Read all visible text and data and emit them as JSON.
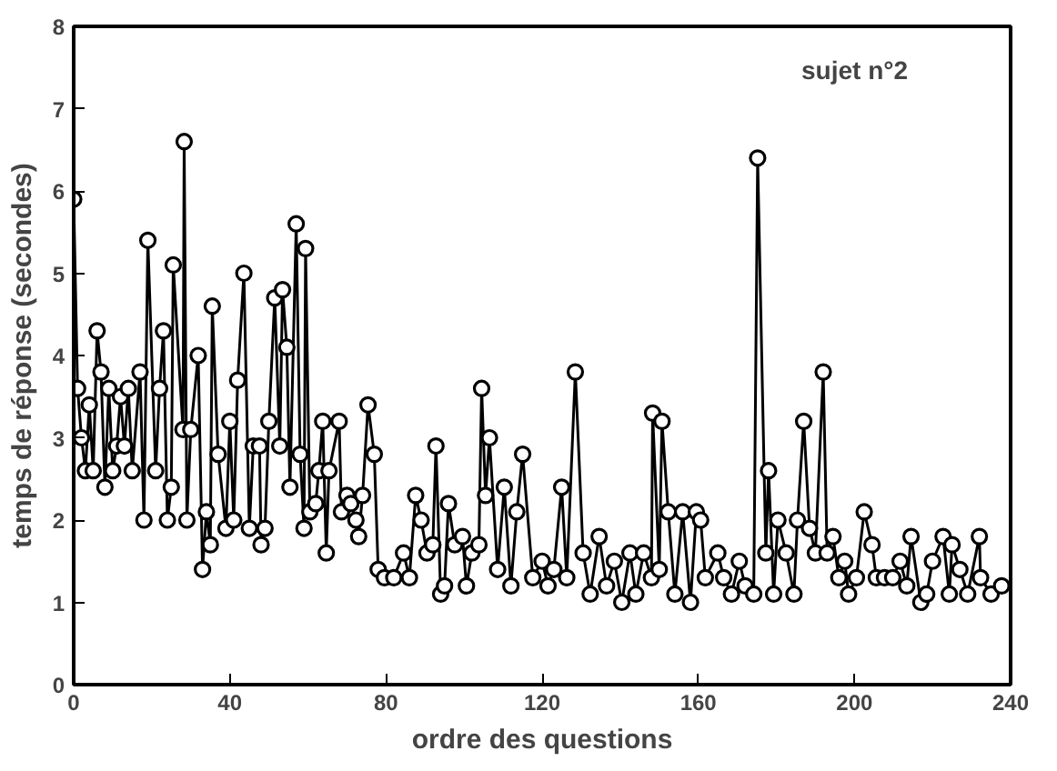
{
  "chart_data": {
    "type": "line",
    "xlabel": "ordre des questions",
    "ylabel": "temps de réponse (secondes)",
    "annotations": [
      "sujet n°2"
    ],
    "xlim": [
      0,
      240
    ],
    "xticks": [
      0,
      40,
      80,
      120,
      160,
      200,
      240
    ],
    "ylim": [
      0,
      8
    ],
    "yticks": [
      0,
      1,
      2,
      3,
      4,
      5,
      6,
      7,
      8
    ],
    "grid": false,
    "marker": "circle",
    "line_style": "solid",
    "series": [
      {
        "color": "#000000",
        "x": [
          0,
          1,
          2,
          3,
          4,
          5,
          6,
          7,
          8,
          9,
          10,
          11,
          12,
          13,
          14,
          15,
          17,
          18,
          19,
          21,
          22,
          23,
          24,
          25,
          25.5,
          28,
          28.3,
          29,
          30,
          31.9,
          33,
          34,
          35,
          35.5,
          37,
          39,
          40,
          41,
          42,
          43.6,
          45,
          46,
          47.6,
          48,
          49,
          50,
          51.5,
          52.8,
          53.5,
          54.6,
          55.4,
          57,
          58,
          59,
          59.4,
          60.5,
          62,
          62.8,
          63.8,
          64.7,
          65.4,
          68,
          68.6,
          70,
          71,
          72.3,
          73,
          74,
          75.4,
          77,
          78,
          79.6,
          82,
          84.5,
          86,
          87.6,
          89,
          90.5,
          92,
          92.8,
          94,
          95,
          96,
          97.6,
          99.6,
          100.6,
          102,
          103.8,
          104.5,
          105.5,
          106.5,
          108.6,
          110.3,
          112,
          113.5,
          115,
          117.6,
          120,
          121.5,
          123,
          125,
          126.3,
          128.5,
          130.5,
          132.3,
          134.6,
          136.5,
          138.5,
          140.4,
          142.5,
          144,
          146,
          148,
          148.3,
          150,
          150.7,
          152.3,
          154,
          156,
          158,
          159.5,
          160.6,
          161.8,
          165,
          166.5,
          168.5,
          170.5,
          172,
          174.2,
          175.2,
          177.3,
          178,
          179.3,
          180.4,
          182.5,
          184.5,
          185.4,
          187,
          188.5,
          190,
          192,
          193,
          194.5,
          196,
          197.5,
          198.5,
          200.5,
          202.5,
          204.5,
          205.6,
          207.7,
          209.8,
          211.7,
          213.4,
          214.5,
          217,
          218.5,
          220,
          222.7,
          224.3,
          225,
          227,
          229,
          232,
          232.3,
          235,
          237.7
        ],
        "values": [
          5.9,
          3.6,
          3.0,
          2.6,
          3.4,
          2.6,
          4.3,
          3.8,
          2.4,
          3.6,
          2.6,
          2.9,
          3.5,
          2.9,
          3.6,
          2.6,
          3.8,
          2.0,
          5.4,
          2.6,
          3.6,
          4.3,
          2.0,
          2.4,
          5.1,
          3.1,
          6.6,
          2.0,
          3.1,
          4.0,
          1.4,
          2.1,
          1.7,
          4.6,
          2.8,
          1.9,
          3.2,
          2.0,
          3.7,
          5.0,
          1.9,
          2.9,
          2.9,
          1.7,
          1.9,
          3.2,
          4.7,
          2.9,
          4.8,
          4.1,
          2.4,
          5.6,
          2.8,
          1.9,
          5.3,
          2.1,
          2.2,
          2.6,
          3.2,
          1.6,
          2.6,
          3.2,
          2.1,
          2.3,
          2.2,
          2.0,
          1.8,
          2.3,
          3.4,
          2.8,
          1.4,
          1.3,
          1.3,
          1.6,
          1.3,
          2.3,
          2.0,
          1.6,
          1.7,
          2.9,
          1.1,
          1.2,
          2.2,
          1.7,
          1.8,
          1.2,
          1.6,
          1.7,
          3.6,
          2.3,
          3.0,
          1.4,
          2.4,
          1.2,
          2.1,
          2.8,
          1.3,
          1.5,
          1.2,
          1.4,
          2.4,
          1.3,
          3.8,
          1.6,
          1.1,
          1.8,
          1.2,
          1.5,
          1.0,
          1.6,
          1.1,
          1.6,
          1.3,
          3.3,
          1.4,
          3.2,
          2.1,
          1.1,
          2.1,
          1.0,
          2.1,
          2.0,
          1.3,
          1.6,
          1.3,
          1.1,
          1.5,
          1.2,
          1.1,
          6.4,
          1.6,
          2.6,
          1.1,
          2.0,
          1.6,
          1.1,
          2.0,
          3.2,
          1.9,
          1.6,
          3.8,
          1.6,
          1.8,
          1.3,
          1.5,
          1.1,
          1.3,
          2.1,
          1.7,
          1.3,
          1.3,
          1.3,
          1.5,
          1.2,
          1.8,
          1.0,
          1.1,
          1.5,
          1.8,
          1.1,
          1.7,
          1.4,
          1.1,
          1.8,
          1.3,
          1.1,
          1.2
        ]
      }
    ]
  }
}
